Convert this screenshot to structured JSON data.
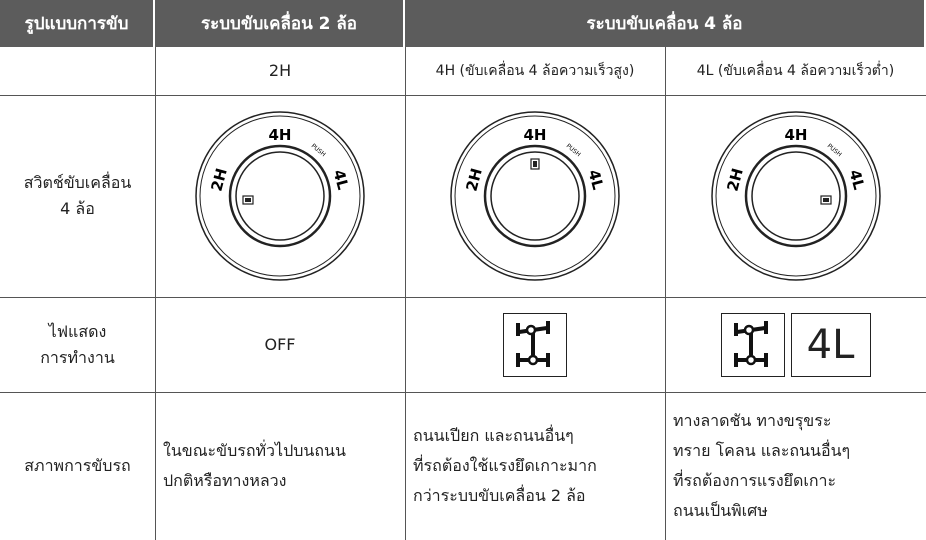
{
  "header": {
    "cells": [
      "รูปแบบการขับ",
      "ระบบขับเคลื่อน 2 ล้อ",
      "ระบบขับเคลื่อน 4 ล้อ"
    ]
  },
  "modes": [
    "2H",
    "4H (ขับเคลื่อน 4 ล้อความเร็วสูง)",
    "4L (ขับเคลื่อน 4 ล้อความเร็วต่ำ)"
  ],
  "switch": {
    "label": [
      "สวิตช์ขับเคลื่อน",
      "4 ล้อ"
    ],
    "dial": {
      "top": "4H",
      "left": "2H",
      "right": "4L",
      "push": "PUSH"
    }
  },
  "lamp": {
    "label": [
      "ไฟแสดง",
      "การทำงาน"
    ],
    "off": "OFF",
    "low_range": "4L"
  },
  "condition": {
    "label": "สภาพการขับรถ",
    "cells": [
      [
        "ในขณะขับรถทั่วไปบนถนน",
        "ปกติหรือทางหลวง"
      ],
      [
        "ถนนเปียก และถนนอื่นๆ",
        "ที่รถต้องใช้แรงยึดเกาะมาก",
        "กว่าระบบขับเคลื่อน 2 ล้อ"
      ],
      [
        "ทางลาดชัน ทางขรุขระ",
        "ทราย โคลน และถนนอื่นๆ",
        "ที่รถต้องการแรงยึดเกาะ",
        "ถนนเป็นพิเศษ"
      ]
    ]
  }
}
